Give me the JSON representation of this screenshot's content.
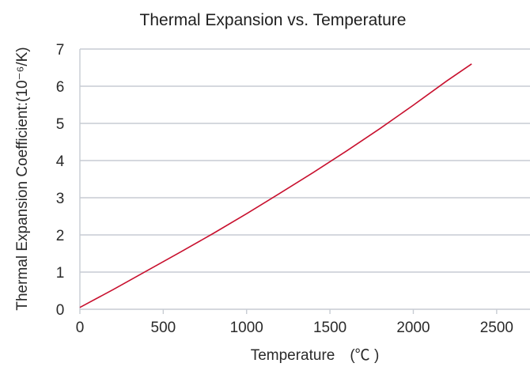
{
  "chart_data": {
    "type": "line",
    "title": "Thermal Expansion vs. Temperature",
    "xlabel": "Temperature　(℃ )",
    "ylabel": "Thermal Expansion Coefficient:(10⁻⁶/K)",
    "xlim": [
      0,
      2700
    ],
    "ylim": [
      0,
      7
    ],
    "xticks": [
      0,
      500,
      1000,
      1500,
      2000,
      2500
    ],
    "yticks": [
      0,
      1,
      2,
      3,
      4,
      5,
      6,
      7
    ],
    "grid": "horizontal",
    "legend": "none",
    "colors": {
      "series": "#c8102e",
      "grid": "#c7ccd3",
      "text": "#2a2a2a"
    },
    "series": [
      {
        "x": [
          0,
          200,
          400,
          600,
          800,
          1000,
          1200,
          1400,
          1600,
          1800,
          2000,
          2200,
          2350
        ],
        "y": [
          0.05,
          0.53,
          1.03,
          1.53,
          2.04,
          2.57,
          3.12,
          3.68,
          4.26,
          4.86,
          5.49,
          6.14,
          6.6
        ]
      }
    ]
  }
}
